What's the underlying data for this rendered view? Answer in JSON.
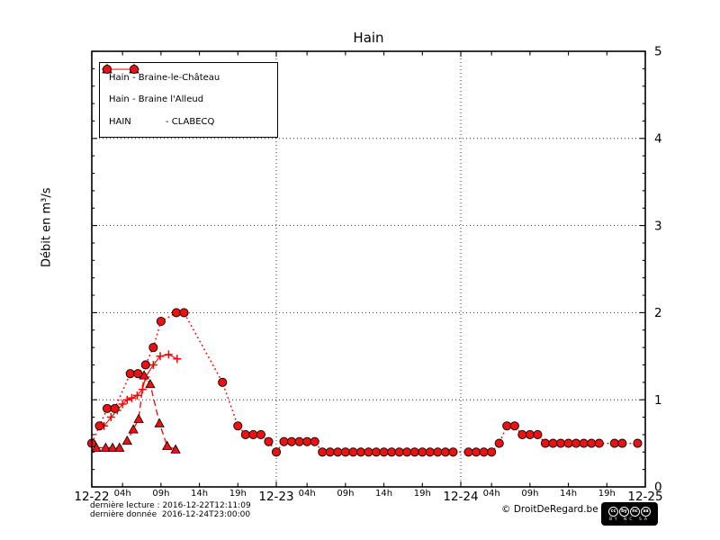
{
  "title": "Hain",
  "ylabel": "Débit en m³/s",
  "footer": {
    "line1": "dernière lecture : 2016-12-22T12:11:09",
    "line2": "dernière donnée  2016-12-24T23:00:00",
    "copyright": "© DroitDeRegard.be",
    "license": {
      "icons": [
        "cc",
        "by",
        "nc",
        "sa"
      ],
      "sub": "BY NC SA"
    }
  },
  "colors": {
    "series_red": "#ff0000",
    "marker_fill": "#ee1111",
    "marker_edge": "#000000",
    "grid": "#000000",
    "background": "#ffffff"
  },
  "chart_data": {
    "type": "line",
    "title": "Hain",
    "ylabel": "Débit en m³/s",
    "ylim": [
      0,
      5
    ],
    "xlim_hours": [
      0,
      72
    ],
    "x_start_date": "12-22",
    "grid": "dotted",
    "legend_position": "upper-left",
    "y_major_ticks": [
      0,
      1,
      2,
      3,
      4,
      5
    ],
    "y_minor_step": 0.2,
    "x_day_ticks": [
      {
        "hour": 0,
        "label": "12-22"
      },
      {
        "hour": 24,
        "label": "12-23"
      },
      {
        "hour": 48,
        "label": "12-24"
      },
      {
        "hour": 72,
        "label": "12-25"
      }
    ],
    "x_hour_ticks": [
      {
        "hour": 4,
        "label": "04h"
      },
      {
        "hour": 9,
        "label": "09h"
      },
      {
        "hour": 14,
        "label": "14h"
      },
      {
        "hour": 19,
        "label": "19h"
      },
      {
        "hour": 28,
        "label": "04h"
      },
      {
        "hour": 33,
        "label": "09h"
      },
      {
        "hour": 38,
        "label": "14h"
      },
      {
        "hour": 43,
        "label": "19h"
      },
      {
        "hour": 52,
        "label": "04h"
      },
      {
        "hour": 57,
        "label": "09h"
      },
      {
        "hour": 62,
        "label": "14h"
      },
      {
        "hour": 67,
        "label": "19h"
      }
    ],
    "series": [
      {
        "label": "Hain - Braine-le-Château",
        "marker": "plus",
        "line": "solid",
        "color": "#ff0000",
        "hours": [
          1.6,
          2.5,
          3.3,
          4.0,
          4.6,
          5.2,
          5.9,
          6.6,
          7.0,
          8.0,
          8.9,
          10.0,
          11.1
        ],
        "values": [
          0.7,
          0.8,
          0.88,
          0.95,
          1.0,
          1.02,
          1.05,
          1.12,
          1.26,
          1.4,
          1.5,
          1.52,
          1.47
        ]
      },
      {
        "label": "Hain - Braine l'Alleud",
        "marker": "triangle",
        "line": "dashed",
        "color": "#ff0000",
        "hours": [
          0.6,
          1.8,
          2.7,
          3.6,
          4.6,
          5.4,
          6.1,
          6.8,
          7.6,
          8.8,
          9.8,
          10.9
        ],
        "values": [
          0.45,
          0.45,
          0.45,
          0.45,
          0.53,
          0.66,
          0.78,
          1.28,
          1.18,
          0.73,
          0.47,
          0.43
        ]
      },
      {
        "label": "HAIN            - CLABECQ",
        "marker": "circle",
        "line": "dotted",
        "color": "#ff0000",
        "hours": [
          0,
          1,
          2,
          3,
          5,
          6,
          7,
          8,
          9,
          11,
          12,
          17,
          19,
          20,
          21,
          22,
          23,
          24,
          25,
          26,
          27,
          28,
          29,
          30,
          31,
          32,
          33,
          34,
          35,
          36,
          37,
          38,
          39,
          40,
          41,
          42,
          43,
          44,
          45,
          46,
          47,
          49,
          50,
          51,
          52,
          53,
          54,
          55,
          56,
          57,
          58,
          59,
          60,
          61,
          62,
          63,
          64,
          65,
          66,
          68,
          69,
          71
        ],
        "values": [
          0.5,
          0.7,
          0.9,
          0.9,
          1.3,
          1.3,
          1.4,
          1.6,
          1.9,
          2.0,
          2.0,
          1.2,
          0.7,
          0.6,
          0.6,
          0.6,
          0.52,
          0.4,
          0.52,
          0.52,
          0.52,
          0.52,
          0.52,
          0.4,
          0.4,
          0.4,
          0.4,
          0.4,
          0.4,
          0.4,
          0.4,
          0.4,
          0.4,
          0.4,
          0.4,
          0.4,
          0.4,
          0.4,
          0.4,
          0.4,
          0.4,
          0.4,
          0.4,
          0.4,
          0.4,
          0.5,
          0.7,
          0.7,
          0.6,
          0.6,
          0.6,
          0.5,
          0.5,
          0.5,
          0.5,
          0.5,
          0.5,
          0.5,
          0.5,
          0.5,
          0.5,
          0.5
        ]
      }
    ]
  }
}
